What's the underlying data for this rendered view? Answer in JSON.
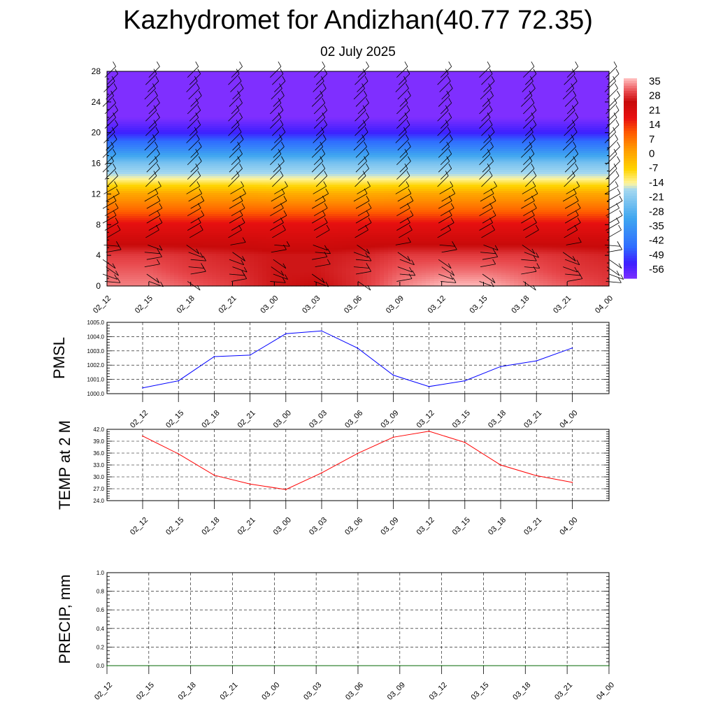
{
  "title": "Kazhydromet for Andizhan(40.77 72.35)",
  "subtitle": "02 July 2025",
  "chart_data": [
    {
      "type": "heatmap",
      "name": "vertical-cross-section",
      "x_labels": [
        "02_12",
        "02_15",
        "02_18",
        "02_21",
        "03_00",
        "03_03",
        "03_06",
        "03_09",
        "03_12",
        "03_15",
        "03_18",
        "03_21",
        "04_00"
      ],
      "y_ticks": [
        "0",
        "4",
        "8",
        "12",
        "16",
        "20",
        "24",
        "28"
      ],
      "ylim": [
        0,
        28
      ],
      "colorbar_labels": [
        "35",
        "28",
        "21",
        "14",
        "7",
        "0",
        "-7",
        "-14",
        "-21",
        "-28",
        "-35",
        "-42",
        "-49",
        "-56"
      ],
      "colorbar_range": [
        -60,
        38
      ],
      "temperature_levels": [
        {
          "height": 0,
          "temps": [
            35,
            35,
            33,
            31,
            28,
            27,
            30,
            35,
            38,
            38,
            35,
            33,
            31
          ]
        },
        {
          "height": 2,
          "temps": [
            33,
            33,
            31,
            30,
            28,
            28,
            30,
            33,
            34,
            34,
            33,
            31,
            30
          ]
        },
        {
          "height": 4,
          "temps": [
            31,
            31,
            30,
            29,
            28,
            28,
            29,
            31,
            31,
            31,
            31,
            30,
            29
          ]
        },
        {
          "height": 6,
          "temps": [
            25,
            25,
            25,
            25,
            24,
            24,
            25,
            25,
            25,
            25,
            25,
            25,
            25
          ]
        },
        {
          "height": 8,
          "temps": [
            20,
            20,
            20,
            20,
            20,
            20,
            20,
            20,
            20,
            20,
            20,
            20,
            20
          ]
        },
        {
          "height": 10,
          "temps": [
            10,
            10,
            10,
            10,
            10,
            10,
            10,
            10,
            10,
            10,
            10,
            10,
            10
          ]
        },
        {
          "height": 12,
          "temps": [
            2,
            2,
            2,
            2,
            1,
            1,
            1,
            2,
            2,
            2,
            2,
            2,
            2
          ]
        },
        {
          "height": 14,
          "temps": [
            -13,
            -13,
            -13,
            -13,
            -13,
            -13,
            -13,
            -13,
            -13,
            -13,
            -13,
            -13,
            -13
          ]
        },
        {
          "height": 16,
          "temps": [
            -22,
            -22,
            -22,
            -22,
            -22,
            -22,
            -22,
            -22,
            -22,
            -22,
            -22,
            -22,
            -22
          ]
        },
        {
          "height": 18,
          "temps": [
            -38,
            -38,
            -38,
            -38,
            -38,
            -38,
            -38,
            -38,
            -38,
            -38,
            -38,
            -38,
            -38
          ]
        },
        {
          "height": 20,
          "temps": [
            -52,
            -52,
            -52,
            -52,
            -52,
            -52,
            -52,
            -52,
            -52,
            -52,
            -52,
            -52,
            -52
          ]
        },
        {
          "height": 21,
          "temps": [
            -56,
            -56,
            -56,
            -56,
            -56,
            -56,
            -56,
            -56,
            -56,
            -56,
            -56,
            -56,
            -56
          ]
        },
        {
          "height": 22,
          "temps": [
            -60,
            -60,
            -60,
            -60,
            -60,
            -60,
            -60,
            -60,
            -60,
            -60,
            -60,
            -60,
            -60
          ]
        },
        {
          "height": 28,
          "temps": [
            -60,
            -60,
            -60,
            -60,
            -60,
            -60,
            -60,
            -60,
            -60,
            -60,
            -60,
            -60,
            -60
          ]
        }
      ],
      "wind_barbs": "overlaid",
      "colors": [
        "#7f2fff",
        "#3d1fff",
        "#2f6dff",
        "#3fa6f0",
        "#a5d8f0",
        "#fff59f",
        "#ffd400",
        "#ff9900",
        "#ff5a00",
        "#e81010",
        "#c80a0a",
        "#e8484c",
        "#ffb8b8"
      ]
    },
    {
      "type": "line",
      "name": "PMSL",
      "ylabel": "PMSL",
      "x": [
        "02_12",
        "02_15",
        "02_18",
        "02_21",
        "03_00",
        "03_03",
        "03_06",
        "03_09",
        "03_12",
        "03_15",
        "03_18",
        "03_21",
        "04_00"
      ],
      "series": [
        {
          "values": [
            1000.4,
            1000.9,
            1002.6,
            1002.7,
            1004.2,
            1004.4,
            1003.2,
            1001.3,
            1000.5,
            1000.9,
            1001.9,
            1002.3,
            1003.2
          ],
          "color": "#0000ff"
        }
      ],
      "ylim": [
        1000.0,
        1005.0
      ],
      "y_ticks": [
        "1000.0",
        "1001.0",
        "1002.0",
        "1003.0",
        "1004.0",
        "1005.0"
      ],
      "grid": true
    },
    {
      "type": "line",
      "name": "TEMP at 2 M",
      "ylabel": "TEMP at 2 M",
      "x": [
        "02_12",
        "02_15",
        "02_18",
        "02_21",
        "03_00",
        "03_03",
        "03_06",
        "03_09",
        "03_12",
        "03_15",
        "03_18",
        "03_21",
        "04_00"
      ],
      "series": [
        {
          "values": [
            40.3,
            35.8,
            30.4,
            28.2,
            26.8,
            31.0,
            35.9,
            40.0,
            41.5,
            38.7,
            33.0,
            30.3,
            28.6
          ],
          "color": "#ff0000"
        }
      ],
      "ylim": [
        24.0,
        42.0
      ],
      "y_ticks": [
        "24.0",
        "27.0",
        "30.0",
        "33.0",
        "36.0",
        "39.0",
        "42.0"
      ],
      "grid": true
    },
    {
      "type": "line",
      "name": "PRECIP, mm",
      "ylabel": "PRECIP, mm",
      "x_labels": [
        "02_12",
        "02_15",
        "02_18",
        "02_21",
        "03_00",
        "03_03",
        "03_06",
        "03_09",
        "03_12",
        "03_15",
        "03_18",
        "03_21",
        "04_00"
      ],
      "series": [
        {
          "values": [
            0,
            0,
            0,
            0,
            0,
            0,
            0,
            0,
            0,
            0,
            0,
            0,
            0
          ],
          "color": "#006400"
        }
      ],
      "ylim": [
        0.0,
        1.0
      ],
      "y_ticks": [
        "0.0",
        "0.2",
        "0.4",
        "0.6",
        "0.8",
        "1.0"
      ],
      "grid": true
    }
  ]
}
